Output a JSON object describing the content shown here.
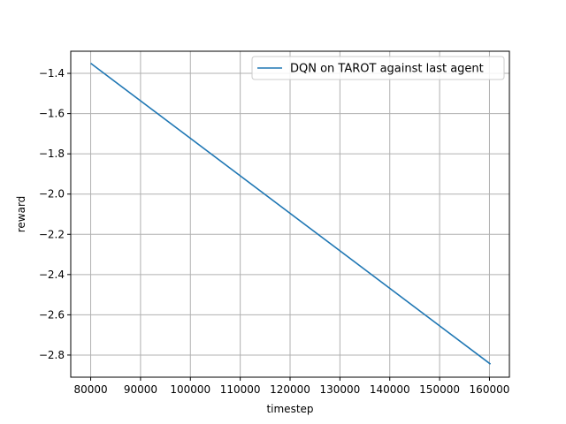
{
  "chart_data": {
    "type": "line",
    "xlabel": "timestep",
    "ylabel": "reward",
    "xlim": [
      76000,
      164000
    ],
    "ylim": [
      -2.91,
      -1.29
    ],
    "x_ticks": [
      80000,
      90000,
      100000,
      110000,
      120000,
      130000,
      140000,
      150000,
      160000
    ],
    "y_ticks": [
      -1.4,
      -1.6,
      -1.8,
      -2.0,
      -2.2,
      -2.4,
      -2.6,
      -2.8
    ],
    "x_tick_labels": [
      "80000",
      "90000",
      "100000",
      "110000",
      "120000",
      "130000",
      "140000",
      "150000",
      "160000"
    ],
    "y_tick_labels": [
      "−1.4",
      "−1.6",
      "−1.8",
      "−2.0",
      "−2.2",
      "−2.4",
      "−2.6",
      "−2.8"
    ],
    "grid": true,
    "legend_position": "top-right",
    "series": [
      {
        "name": "DQN on TAROT against last agent",
        "color": "#1f77b4",
        "x": [
          80000,
          160200
        ],
        "y": [
          -1.35,
          -2.845
        ]
      }
    ]
  }
}
